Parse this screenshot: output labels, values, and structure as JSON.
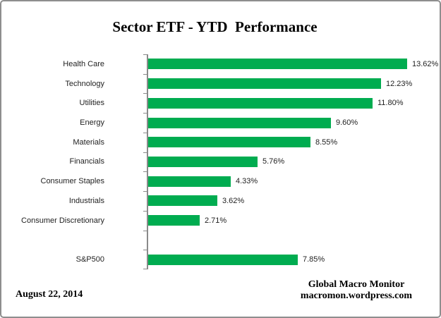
{
  "window": {
    "background": "#ffffff",
    "border_color": "#8e8e8e"
  },
  "chart_data": {
    "type": "bar",
    "orientation": "horizontal",
    "title": "Sector ETF - YTD  Performance",
    "categories": [
      "Health Care",
      "Technology",
      "Utilities",
      "Energy",
      "Materials",
      "Financials",
      "Consumer Staples",
      "Industrials",
      "Consumer Discretionary",
      "",
      "S&P500"
    ],
    "values": [
      13.62,
      12.23,
      11.8,
      9.6,
      8.55,
      5.76,
      4.33,
      3.62,
      2.71,
      null,
      7.85
    ],
    "value_labels": [
      "13.62%",
      "12.23%",
      "11.80%",
      "9.60%",
      "8.55%",
      "5.76%",
      "4.33%",
      "3.62%",
      "2.71%",
      "",
      "7.85%"
    ],
    "xlabel": "",
    "ylabel": "",
    "xlim": [
      0,
      14
    ],
    "grid": false,
    "legend": false,
    "bar_color": "#00AC50",
    "axis_color": "#8a8a8a"
  },
  "footer": {
    "date": "August 22, 2014",
    "credit_line1": "Global Macro Monitor",
    "credit_line2": "macromon.wordpress.com"
  }
}
